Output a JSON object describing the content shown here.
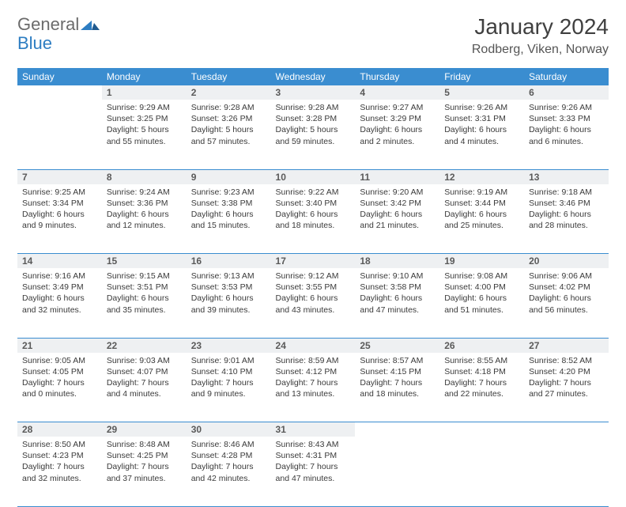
{
  "logo": {
    "word1": "General",
    "word2": "Blue"
  },
  "title": "January 2024",
  "location": "Rodberg, Viken, Norway",
  "colors": {
    "header_bg": "#3a8dd0",
    "header_text": "#ffffff",
    "daynum_bg": "#eef0f2",
    "daynum_text": "#5a5a5a",
    "body_text": "#3a3a3a",
    "rule": "#3a8dd0",
    "logo_gray": "#6b6b6b",
    "logo_blue": "#2d7dc2"
  },
  "weekdays": [
    "Sunday",
    "Monday",
    "Tuesday",
    "Wednesday",
    "Thursday",
    "Friday",
    "Saturday"
  ],
  "weeks": [
    {
      "nums": [
        "",
        "1",
        "2",
        "3",
        "4",
        "5",
        "6"
      ],
      "cells": [
        {
          "sunrise": "",
          "sunset": "",
          "daylight": ""
        },
        {
          "sunrise": "Sunrise: 9:29 AM",
          "sunset": "Sunset: 3:25 PM",
          "daylight": "Daylight: 5 hours and 55 minutes."
        },
        {
          "sunrise": "Sunrise: 9:28 AM",
          "sunset": "Sunset: 3:26 PM",
          "daylight": "Daylight: 5 hours and 57 minutes."
        },
        {
          "sunrise": "Sunrise: 9:28 AM",
          "sunset": "Sunset: 3:28 PM",
          "daylight": "Daylight: 5 hours and 59 minutes."
        },
        {
          "sunrise": "Sunrise: 9:27 AM",
          "sunset": "Sunset: 3:29 PM",
          "daylight": "Daylight: 6 hours and 2 minutes."
        },
        {
          "sunrise": "Sunrise: 9:26 AM",
          "sunset": "Sunset: 3:31 PM",
          "daylight": "Daylight: 6 hours and 4 minutes."
        },
        {
          "sunrise": "Sunrise: 9:26 AM",
          "sunset": "Sunset: 3:33 PM",
          "daylight": "Daylight: 6 hours and 6 minutes."
        }
      ]
    },
    {
      "nums": [
        "7",
        "8",
        "9",
        "10",
        "11",
        "12",
        "13"
      ],
      "cells": [
        {
          "sunrise": "Sunrise: 9:25 AM",
          "sunset": "Sunset: 3:34 PM",
          "daylight": "Daylight: 6 hours and 9 minutes."
        },
        {
          "sunrise": "Sunrise: 9:24 AM",
          "sunset": "Sunset: 3:36 PM",
          "daylight": "Daylight: 6 hours and 12 minutes."
        },
        {
          "sunrise": "Sunrise: 9:23 AM",
          "sunset": "Sunset: 3:38 PM",
          "daylight": "Daylight: 6 hours and 15 minutes."
        },
        {
          "sunrise": "Sunrise: 9:22 AM",
          "sunset": "Sunset: 3:40 PM",
          "daylight": "Daylight: 6 hours and 18 minutes."
        },
        {
          "sunrise": "Sunrise: 9:20 AM",
          "sunset": "Sunset: 3:42 PM",
          "daylight": "Daylight: 6 hours and 21 minutes."
        },
        {
          "sunrise": "Sunrise: 9:19 AM",
          "sunset": "Sunset: 3:44 PM",
          "daylight": "Daylight: 6 hours and 25 minutes."
        },
        {
          "sunrise": "Sunrise: 9:18 AM",
          "sunset": "Sunset: 3:46 PM",
          "daylight": "Daylight: 6 hours and 28 minutes."
        }
      ]
    },
    {
      "nums": [
        "14",
        "15",
        "16",
        "17",
        "18",
        "19",
        "20"
      ],
      "cells": [
        {
          "sunrise": "Sunrise: 9:16 AM",
          "sunset": "Sunset: 3:49 PM",
          "daylight": "Daylight: 6 hours and 32 minutes."
        },
        {
          "sunrise": "Sunrise: 9:15 AM",
          "sunset": "Sunset: 3:51 PM",
          "daylight": "Daylight: 6 hours and 35 minutes."
        },
        {
          "sunrise": "Sunrise: 9:13 AM",
          "sunset": "Sunset: 3:53 PM",
          "daylight": "Daylight: 6 hours and 39 minutes."
        },
        {
          "sunrise": "Sunrise: 9:12 AM",
          "sunset": "Sunset: 3:55 PM",
          "daylight": "Daylight: 6 hours and 43 minutes."
        },
        {
          "sunrise": "Sunrise: 9:10 AM",
          "sunset": "Sunset: 3:58 PM",
          "daylight": "Daylight: 6 hours and 47 minutes."
        },
        {
          "sunrise": "Sunrise: 9:08 AM",
          "sunset": "Sunset: 4:00 PM",
          "daylight": "Daylight: 6 hours and 51 minutes."
        },
        {
          "sunrise": "Sunrise: 9:06 AM",
          "sunset": "Sunset: 4:02 PM",
          "daylight": "Daylight: 6 hours and 56 minutes."
        }
      ]
    },
    {
      "nums": [
        "21",
        "22",
        "23",
        "24",
        "25",
        "26",
        "27"
      ],
      "cells": [
        {
          "sunrise": "Sunrise: 9:05 AM",
          "sunset": "Sunset: 4:05 PM",
          "daylight": "Daylight: 7 hours and 0 minutes."
        },
        {
          "sunrise": "Sunrise: 9:03 AM",
          "sunset": "Sunset: 4:07 PM",
          "daylight": "Daylight: 7 hours and 4 minutes."
        },
        {
          "sunrise": "Sunrise: 9:01 AM",
          "sunset": "Sunset: 4:10 PM",
          "daylight": "Daylight: 7 hours and 9 minutes."
        },
        {
          "sunrise": "Sunrise: 8:59 AM",
          "sunset": "Sunset: 4:12 PM",
          "daylight": "Daylight: 7 hours and 13 minutes."
        },
        {
          "sunrise": "Sunrise: 8:57 AM",
          "sunset": "Sunset: 4:15 PM",
          "daylight": "Daylight: 7 hours and 18 minutes."
        },
        {
          "sunrise": "Sunrise: 8:55 AM",
          "sunset": "Sunset: 4:18 PM",
          "daylight": "Daylight: 7 hours and 22 minutes."
        },
        {
          "sunrise": "Sunrise: 8:52 AM",
          "sunset": "Sunset: 4:20 PM",
          "daylight": "Daylight: 7 hours and 27 minutes."
        }
      ]
    },
    {
      "nums": [
        "28",
        "29",
        "30",
        "31",
        "",
        "",
        ""
      ],
      "cells": [
        {
          "sunrise": "Sunrise: 8:50 AM",
          "sunset": "Sunset: 4:23 PM",
          "daylight": "Daylight: 7 hours and 32 minutes."
        },
        {
          "sunrise": "Sunrise: 8:48 AM",
          "sunset": "Sunset: 4:25 PM",
          "daylight": "Daylight: 7 hours and 37 minutes."
        },
        {
          "sunrise": "Sunrise: 8:46 AM",
          "sunset": "Sunset: 4:28 PM",
          "daylight": "Daylight: 7 hours and 42 minutes."
        },
        {
          "sunrise": "Sunrise: 8:43 AM",
          "sunset": "Sunset: 4:31 PM",
          "daylight": "Daylight: 7 hours and 47 minutes."
        },
        {
          "sunrise": "",
          "sunset": "",
          "daylight": ""
        },
        {
          "sunrise": "",
          "sunset": "",
          "daylight": ""
        },
        {
          "sunrise": "",
          "sunset": "",
          "daylight": ""
        }
      ]
    }
  ]
}
